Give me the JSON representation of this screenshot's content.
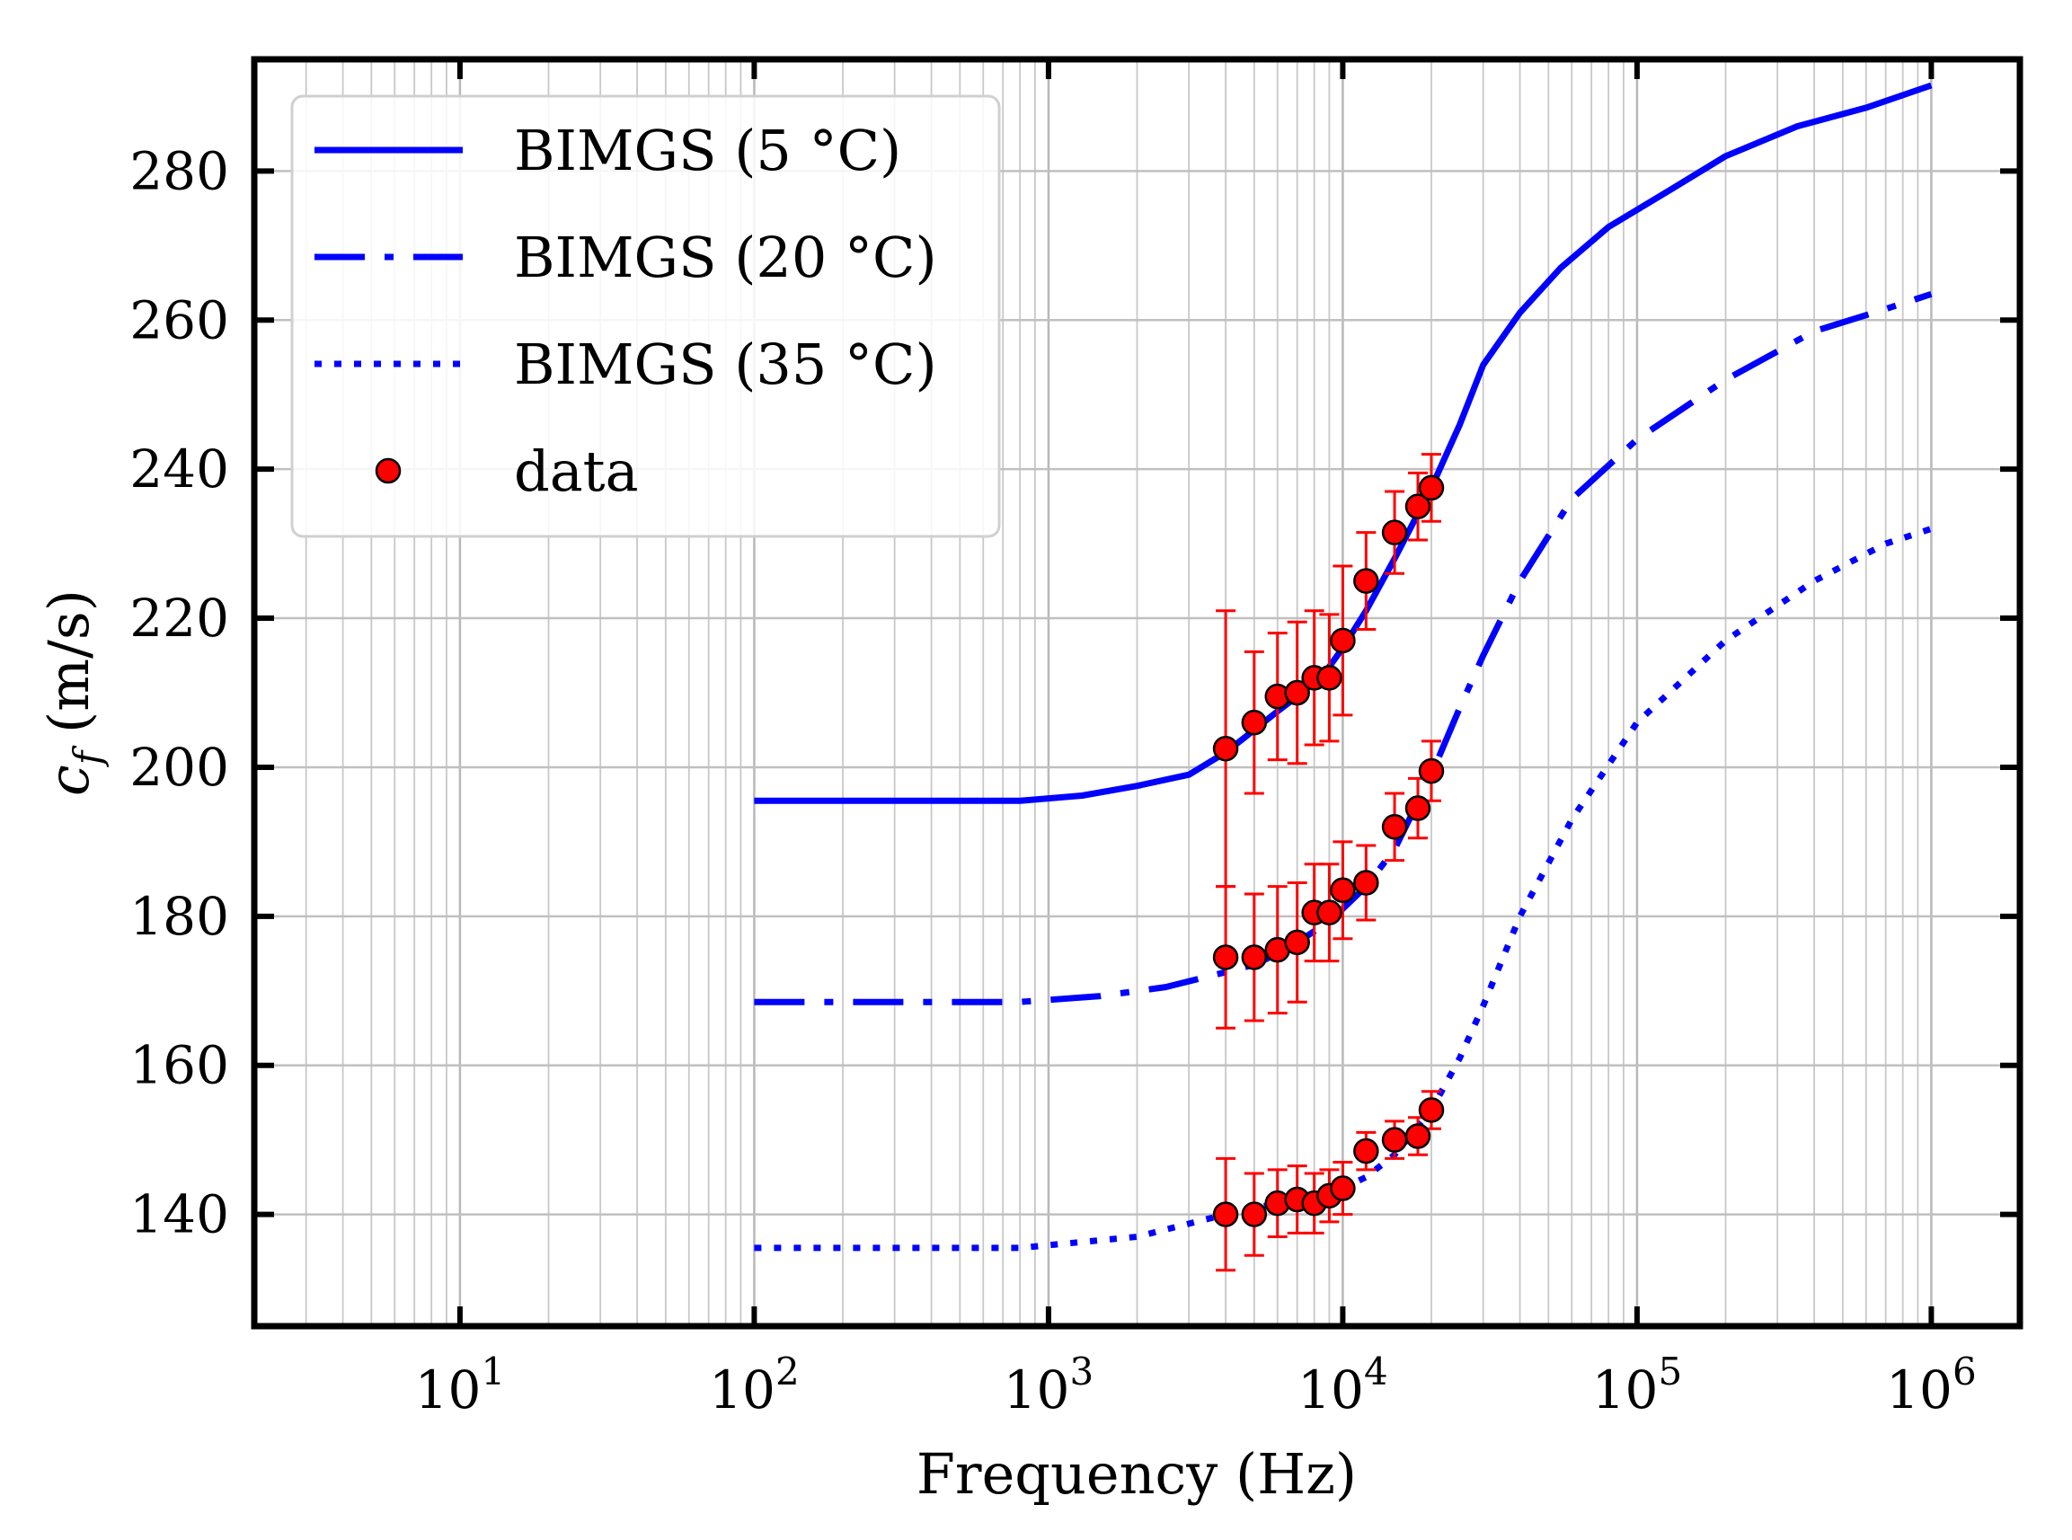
{
  "chart_data": {
    "type": "line",
    "title": "",
    "xlabel": "Frequency (Hz)",
    "ylabel_symbol": "c",
    "ylabel_subscript": "f",
    "ylabel_unit": " (m/s)",
    "x_scale": "log",
    "xlim": [
      2,
      2000000
    ],
    "ylim": [
      125,
      295
    ],
    "grid": true,
    "legend_position": "top-left",
    "x_ticks": [
      {
        "value": 10,
        "base": "10",
        "exp": "1"
      },
      {
        "value": 100,
        "base": "10",
        "exp": "2"
      },
      {
        "value": 1000,
        "base": "10",
        "exp": "3"
      },
      {
        "value": 10000,
        "base": "10",
        "exp": "4"
      },
      {
        "value": 100000,
        "base": "10",
        "exp": "5"
      },
      {
        "value": 1000000,
        "base": "10",
        "exp": "6"
      }
    ],
    "y_ticks": [
      {
        "value": 140,
        "label": "140"
      },
      {
        "value": 160,
        "label": "160"
      },
      {
        "value": 180,
        "label": "180"
      },
      {
        "value": 200,
        "label": "200"
      },
      {
        "value": 220,
        "label": "220"
      },
      {
        "value": 240,
        "label": "240"
      },
      {
        "value": 260,
        "label": "260"
      },
      {
        "value": 280,
        "label": "280"
      }
    ],
    "series": [
      {
        "name": "BIMGS (5 °C)",
        "style": "solid",
        "color": "#0000ff",
        "points": [
          [
            100,
            195.5
          ],
          [
            800,
            195.5
          ],
          [
            1300,
            196.2
          ],
          [
            2000,
            197.5
          ],
          [
            3000,
            199
          ],
          [
            4000,
            202
          ],
          [
            5000,
            205
          ],
          [
            6000,
            207.5
          ],
          [
            7000,
            209.5
          ],
          [
            8000,
            211.5
          ],
          [
            9000,
            213.5
          ],
          [
            10000,
            216
          ],
          [
            12000,
            221
          ],
          [
            15000,
            228
          ],
          [
            18000,
            234
          ],
          [
            20000,
            237.5
          ],
          [
            25000,
            246
          ],
          [
            30000,
            254
          ],
          [
            40000,
            261
          ],
          [
            55000,
            267
          ],
          [
            80000,
            272.5
          ],
          [
            130000,
            277.5
          ],
          [
            200000,
            282
          ],
          [
            350000,
            286
          ],
          [
            600000,
            288.5
          ],
          [
            1000000,
            291.5
          ]
        ]
      },
      {
        "name": "BIMGS (20 °C)",
        "style": "dashdot",
        "color": "#0000ff",
        "points": [
          [
            100,
            168.5
          ],
          [
            800,
            168.5
          ],
          [
            1500,
            169.3
          ],
          [
            2500,
            170.5
          ],
          [
            4000,
            172.5
          ],
          [
            5000,
            173.5
          ],
          [
            6000,
            175
          ],
          [
            7000,
            176.5
          ],
          [
            8000,
            178
          ],
          [
            9000,
            179.5
          ],
          [
            10000,
            181
          ],
          [
            12000,
            184
          ],
          [
            15000,
            189
          ],
          [
            20000,
            199
          ],
          [
            25000,
            208
          ],
          [
            30000,
            215
          ],
          [
            40000,
            225
          ],
          [
            60000,
            236
          ],
          [
            100000,
            244
          ],
          [
            200000,
            252
          ],
          [
            400000,
            258.5
          ],
          [
            700000,
            261.5
          ],
          [
            1000000,
            263.5
          ]
        ]
      },
      {
        "name": "BIMGS (35 °C)",
        "style": "dotted",
        "color": "#0000ff",
        "points": [
          [
            100,
            135.5
          ],
          [
            800,
            135.5
          ],
          [
            2000,
            137
          ],
          [
            4000,
            140
          ],
          [
            6000,
            141.5
          ],
          [
            8000,
            142.5
          ],
          [
            10000,
            143.5
          ],
          [
            12000,
            145
          ],
          [
            15000,
            148
          ],
          [
            20000,
            154
          ],
          [
            25000,
            161
          ],
          [
            30000,
            168
          ],
          [
            40000,
            180
          ],
          [
            60000,
            193
          ],
          [
            100000,
            206
          ],
          [
            200000,
            217
          ],
          [
            400000,
            225
          ],
          [
            700000,
            230
          ],
          [
            1000000,
            232
          ]
        ]
      }
    ],
    "data_series": {
      "name": "data",
      "color": "#ff0000",
      "points": [
        {
          "x": 4000,
          "y": 202.5,
          "err": 18.5
        },
        {
          "x": 5000,
          "y": 206,
          "err": 9.5
        },
        {
          "x": 6000,
          "y": 209.5,
          "err": 8.5
        },
        {
          "x": 7000,
          "y": 210,
          "err": 9.5
        },
        {
          "x": 8000,
          "y": 212,
          "err": 9
        },
        {
          "x": 9000,
          "y": 212,
          "err": 8.5
        },
        {
          "x": 10000,
          "y": 217,
          "err": 10
        },
        {
          "x": 12000,
          "y": 225,
          "err": 6.5
        },
        {
          "x": 15000,
          "y": 231.5,
          "err": 5.5
        },
        {
          "x": 18000,
          "y": 235,
          "err": 4.5
        },
        {
          "x": 20000,
          "y": 237.5,
          "err": 4.5
        },
        {
          "x": 4000,
          "y": 174.5,
          "err": 9.5
        },
        {
          "x": 5000,
          "y": 174.5,
          "err": 8.5
        },
        {
          "x": 6000,
          "y": 175.5,
          "err": 8.5
        },
        {
          "x": 7000,
          "y": 176.5,
          "err": 8
        },
        {
          "x": 8000,
          "y": 180.5,
          "err": 6.5
        },
        {
          "x": 9000,
          "y": 180.5,
          "err": 6.5
        },
        {
          "x": 10000,
          "y": 183.5,
          "err": 6.5
        },
        {
          "x": 12000,
          "y": 184.5,
          "err": 5
        },
        {
          "x": 15000,
          "y": 192,
          "err": 4.5
        },
        {
          "x": 18000,
          "y": 194.5,
          "err": 4
        },
        {
          "x": 20000,
          "y": 199.5,
          "err": 4
        },
        {
          "x": 4000,
          "y": 140,
          "err": 7.5
        },
        {
          "x": 5000,
          "y": 140,
          "err": 5.5
        },
        {
          "x": 6000,
          "y": 141.5,
          "err": 4.5
        },
        {
          "x": 7000,
          "y": 142,
          "err": 4.5
        },
        {
          "x": 8000,
          "y": 141.5,
          "err": 4
        },
        {
          "x": 9000,
          "y": 142.5,
          "err": 3.5
        },
        {
          "x": 10000,
          "y": 143.5,
          "err": 3.5
        },
        {
          "x": 12000,
          "y": 148.5,
          "err": 2.5
        },
        {
          "x": 15000,
          "y": 150,
          "err": 2.5
        },
        {
          "x": 18000,
          "y": 150.5,
          "err": 2.5
        },
        {
          "x": 20000,
          "y": 154,
          "err": 2.5
        }
      ]
    },
    "legend": [
      {
        "label": "BIMGS (5 °C)",
        "style": "solid"
      },
      {
        "label": "BIMGS (20 °C)",
        "style": "dashdot"
      },
      {
        "label": "BIMGS (35 °C)",
        "style": "dotted"
      },
      {
        "label": "data",
        "style": "marker"
      }
    ]
  }
}
